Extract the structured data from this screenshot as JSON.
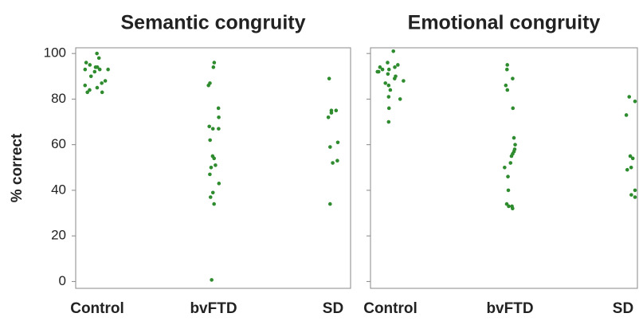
{
  "chart_data": [
    {
      "type": "strip",
      "title": "Semantic congruity",
      "ylabel": "% correct",
      "color": "#2e8b2e",
      "categories": [
        "Control",
        "bvFTD",
        "SD"
      ],
      "values": [
        [
          100,
          98,
          96,
          95,
          94,
          94,
          93,
          93,
          93,
          92,
          90,
          88,
          87,
          86,
          85,
          84,
          83,
          83
        ],
        [
          96,
          94,
          87,
          86,
          76,
          72,
          68,
          67,
          67,
          62,
          55,
          54,
          51,
          50,
          47,
          43,
          39,
          37,
          34,
          0.7
        ],
        [
          89,
          75,
          75,
          74,
          72,
          61,
          59,
          53,
          52,
          34
        ]
      ],
      "ylim": [
        -3,
        102.5
      ],
      "yticks": [
        0,
        20,
        40,
        60,
        80,
        100
      ],
      "show_ytick_labels": true
    },
    {
      "type": "strip",
      "title": "Emotional congruity",
      "color": "#2e8b2e",
      "categories": [
        "Control",
        "bvFTD",
        "SD"
      ],
      "values": [
        [
          101,
          96,
          95,
          94,
          94,
          93,
          93,
          92,
          92,
          91,
          90,
          89,
          88,
          87,
          86,
          84,
          81,
          80,
          76,
          70
        ],
        [
          95,
          93,
          89,
          86,
          84,
          76,
          63,
          60,
          58,
          57,
          56,
          55,
          52,
          50,
          46,
          40,
          34,
          33,
          33,
          32
        ],
        [
          81,
          79,
          73,
          55,
          54,
          50,
          49,
          40,
          38,
          37
        ]
      ],
      "ylim": [
        -3,
        102.5
      ],
      "yticks": [
        0,
        20,
        40,
        60,
        80,
        100
      ],
      "show_ytick_labels": false
    }
  ]
}
